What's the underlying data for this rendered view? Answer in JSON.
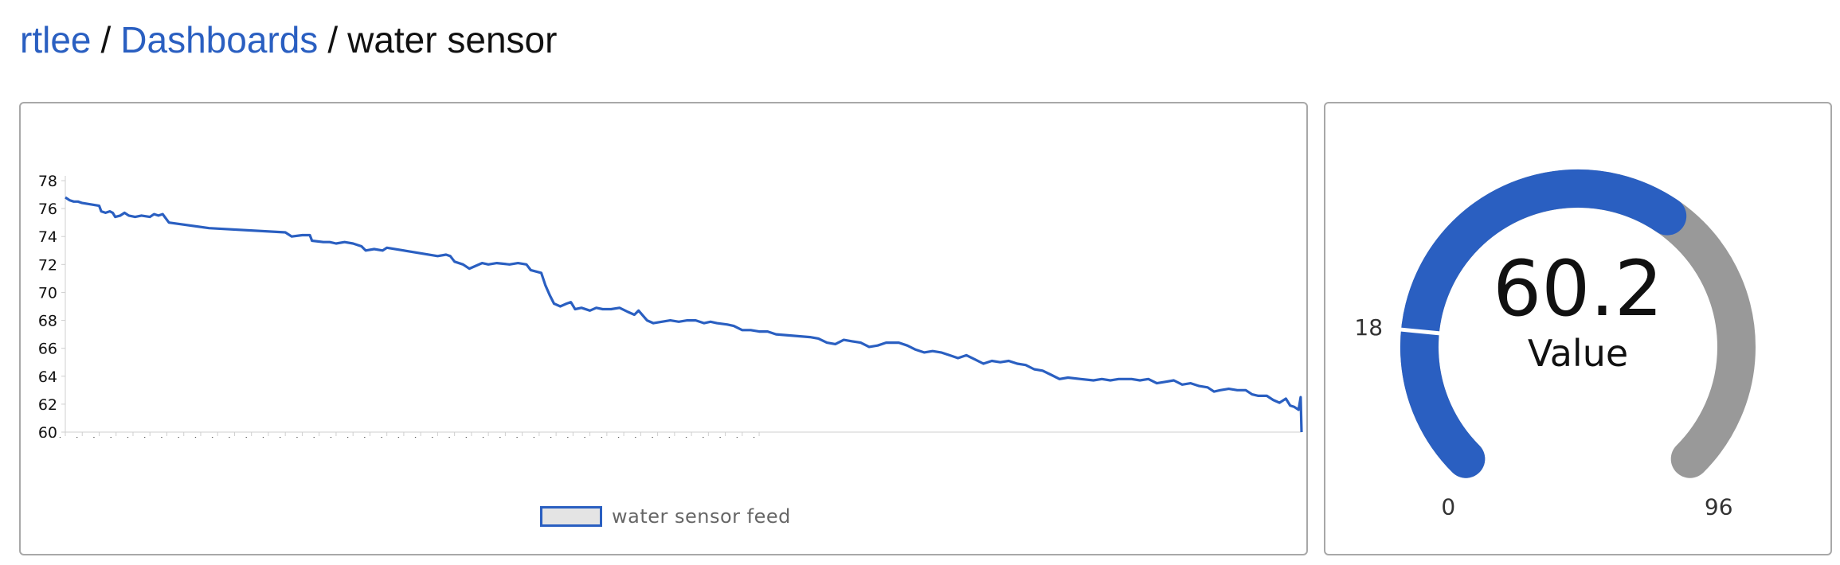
{
  "breadcrumb": {
    "user": "rtlee",
    "sep1": "/",
    "dashboards": "Dashboards",
    "sep2": "/",
    "current": "water sensor"
  },
  "colors": {
    "accent": "#2a5fc1",
    "gauge_track": "#999999",
    "legend_fill": "#e4e4e4"
  },
  "chart_data": {
    "type": "line",
    "title": "",
    "xlabel": "",
    "ylabel": "",
    "ylim": [
      60,
      78
    ],
    "y_ticks": [
      "60",
      "62",
      "64",
      "66",
      "68",
      "70",
      "72",
      "74",
      "76",
      "78"
    ],
    "x_tick_labels": [
      "11PM",
      "3AM",
      "7AM",
      "11AM",
      "3PM",
      "7PM",
      "11PM",
      "3AM",
      "7AM",
      "11AM",
      "3PM",
      "7PM",
      "11PM",
      "3AM",
      "7AM",
      "11AM",
      "3PM",
      "7PM",
      "11PM",
      "3AM",
      "7AM",
      "11AM",
      "3PM",
      "7PM",
      "11PM",
      "3AM",
      "7AM",
      "11AM",
      "3PM",
      "7PM",
      "11PM",
      "3AM",
      "7AM",
      "11AM",
      "3PM",
      "7PM",
      "11PM",
      "3AM",
      "7AM",
      "11AM",
      "3PM",
      "7PM"
    ],
    "x_start_label": "11PM",
    "x_tick_hours": 4,
    "legend": {
      "label": "water sensor feed",
      "position": "bottom-center"
    },
    "grid": false,
    "series": [
      {
        "name": "water sensor feed",
        "points": [
          [
            0,
            76.8
          ],
          [
            1,
            76.6
          ],
          [
            2,
            76.5
          ],
          [
            3,
            76.5
          ],
          [
            4,
            76.4
          ],
          [
            6,
            76.3
          ],
          [
            8,
            76.2
          ],
          [
            8.5,
            75.8
          ],
          [
            9.5,
            75.7
          ],
          [
            10.5,
            75.8
          ],
          [
            11.2,
            75.7
          ],
          [
            11.8,
            75.4
          ],
          [
            13,
            75.5
          ],
          [
            14,
            75.7
          ],
          [
            15,
            75.5
          ],
          [
            16.5,
            75.4
          ],
          [
            18,
            75.5
          ],
          [
            20,
            75.4
          ],
          [
            21,
            75.6
          ],
          [
            22,
            75.5
          ],
          [
            23,
            75.6
          ],
          [
            24.5,
            75.0
          ],
          [
            34,
            74.6
          ],
          [
            52,
            74.3
          ],
          [
            53.5,
            74.0
          ],
          [
            56,
            74.1
          ],
          [
            57.8,
            74.1
          ],
          [
            58.3,
            73.7
          ],
          [
            61,
            73.6
          ],
          [
            62.5,
            73.6
          ],
          [
            64,
            73.5
          ],
          [
            66,
            73.6
          ],
          [
            68,
            73.5
          ],
          [
            70,
            73.3
          ],
          [
            71,
            73.0
          ],
          [
            73,
            73.1
          ],
          [
            75,
            73.0
          ],
          [
            76,
            73.2
          ],
          [
            84,
            72.8
          ],
          [
            88,
            72.6
          ],
          [
            90,
            72.7
          ],
          [
            91,
            72.6
          ],
          [
            92,
            72.2
          ],
          [
            94,
            72.0
          ],
          [
            95.5,
            71.7
          ],
          [
            97,
            71.9
          ],
          [
            98.5,
            72.1
          ],
          [
            100,
            72.0
          ],
          [
            102,
            72.1
          ],
          [
            105,
            72.0
          ],
          [
            107,
            72.1
          ],
          [
            109,
            72.0
          ],
          [
            110,
            71.6
          ],
          [
            112.5,
            71.4
          ],
          [
            113.5,
            70.5
          ],
          [
            114.5,
            69.8
          ],
          [
            115.5,
            69.2
          ],
          [
            117,
            69.0
          ],
          [
            118.5,
            69.2
          ],
          [
            119.5,
            69.3
          ],
          [
            120.5,
            68.8
          ],
          [
            122,
            68.9
          ],
          [
            124,
            68.7
          ],
          [
            125.5,
            68.9
          ],
          [
            127,
            68.8
          ],
          [
            129,
            68.8
          ],
          [
            131,
            68.9
          ],
          [
            133,
            68.6
          ],
          [
            134.5,
            68.4
          ],
          [
            135.5,
            68.7
          ],
          [
            137.5,
            68.0
          ],
          [
            139,
            67.8
          ],
          [
            141,
            67.9
          ],
          [
            143,
            68.0
          ],
          [
            145,
            67.9
          ],
          [
            147,
            68.0
          ],
          [
            149,
            68.0
          ],
          [
            151,
            67.8
          ],
          [
            152.5,
            67.9
          ],
          [
            154,
            67.8
          ],
          [
            156.5,
            67.7
          ],
          [
            158,
            67.6
          ],
          [
            160,
            67.3
          ],
          [
            162,
            67.3
          ],
          [
            164,
            67.2
          ],
          [
            166,
            67.2
          ],
          [
            168,
            67.0
          ],
          [
            172,
            66.9
          ],
          [
            176,
            66.8
          ],
          [
            178,
            66.7
          ],
          [
            180,
            66.4
          ],
          [
            182,
            66.3
          ],
          [
            184,
            66.6
          ],
          [
            186,
            66.5
          ],
          [
            188,
            66.4
          ],
          [
            190,
            66.1
          ],
          [
            192,
            66.2
          ],
          [
            194,
            66.4
          ],
          [
            197,
            66.4
          ],
          [
            199,
            66.2
          ],
          [
            201,
            65.9
          ],
          [
            203,
            65.7
          ],
          [
            205,
            65.8
          ],
          [
            207,
            65.7
          ],
          [
            209,
            65.5
          ],
          [
            211,
            65.3
          ],
          [
            213,
            65.5
          ],
          [
            215,
            65.2
          ],
          [
            217,
            64.9
          ],
          [
            219,
            65.1
          ],
          [
            221,
            65.0
          ],
          [
            223,
            65.1
          ],
          [
            225,
            64.9
          ],
          [
            227,
            64.8
          ],
          [
            229,
            64.5
          ],
          [
            231,
            64.4
          ],
          [
            233,
            64.1
          ],
          [
            235,
            63.8
          ],
          [
            237,
            63.9
          ],
          [
            240,
            63.8
          ],
          [
            243,
            63.7
          ],
          [
            245,
            63.8
          ],
          [
            247,
            63.7
          ],
          [
            249,
            63.8
          ],
          [
            252,
            63.8
          ],
          [
            254,
            63.7
          ],
          [
            256,
            63.8
          ],
          [
            258,
            63.5
          ],
          [
            260,
            63.6
          ],
          [
            262,
            63.7
          ],
          [
            264,
            63.4
          ],
          [
            266,
            63.5
          ],
          [
            268,
            63.3
          ],
          [
            270,
            63.2
          ],
          [
            271.5,
            62.9
          ],
          [
            273,
            63.0
          ],
          [
            275,
            63.1
          ],
          [
            277,
            63.0
          ],
          [
            279,
            63.0
          ],
          [
            280.5,
            62.7
          ],
          [
            282,
            62.6
          ],
          [
            284,
            62.6
          ],
          [
            285.5,
            62.3
          ],
          [
            287,
            62.1
          ],
          [
            288.5,
            62.4
          ],
          [
            289.5,
            61.9
          ],
          [
            290.5,
            61.8
          ],
          [
            291.5,
            61.6
          ],
          [
            292,
            62.5
          ],
          [
            292.2,
            60.0
          ]
        ]
      }
    ]
  },
  "gauge": {
    "value": "60.2",
    "label": "Value",
    "min": "0",
    "max": "96",
    "threshold": "18",
    "value_num": 60.2,
    "min_num": 0,
    "max_num": 96,
    "threshold_num": 18
  }
}
